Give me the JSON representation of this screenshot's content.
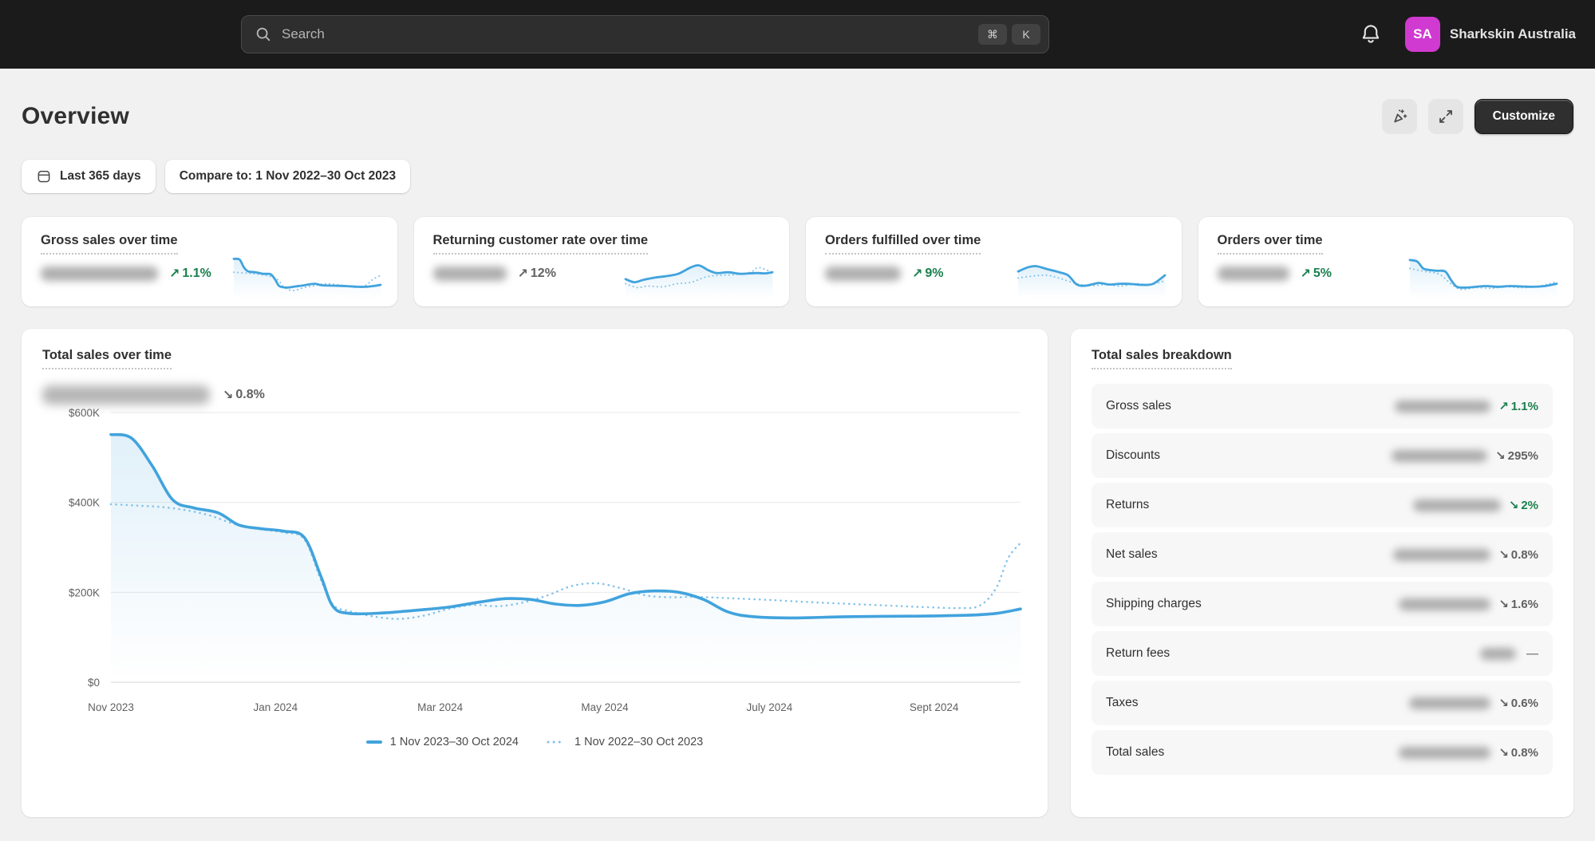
{
  "colors": {
    "accent": "#41a3dd",
    "accent_soft": "#82c2ea",
    "positive": "#19804d",
    "avatar": "#d03ad0"
  },
  "topbar": {
    "search_placeholder": "Search",
    "shortcut_keys": [
      "⌘",
      "K"
    ],
    "store_initials": "SA",
    "store_name": "Sharkskin Australia"
  },
  "header": {
    "title": "Overview",
    "customize_label": "Customize"
  },
  "filters": {
    "date_range": "Last 365 days",
    "compare": "Compare to: 1 Nov 2022–30 Oct 2023"
  },
  "metric_cards": [
    {
      "title": "Gross sales over time",
      "arrow": "↗",
      "change": "1.1%",
      "tone": "positive",
      "value_redacted": true,
      "sparkline": {
        "current": [
          [
            0,
            0.95
          ],
          [
            0.04,
            0.93
          ],
          [
            0.07,
            0.72
          ],
          [
            0.1,
            0.62
          ],
          [
            0.15,
            0.6
          ],
          [
            0.2,
            0.56
          ],
          [
            0.25,
            0.55
          ],
          [
            0.28,
            0.42
          ],
          [
            0.31,
            0.24
          ],
          [
            0.36,
            0.2
          ],
          [
            0.42,
            0.23
          ],
          [
            0.48,
            0.26
          ],
          [
            0.55,
            0.3
          ],
          [
            0.6,
            0.26
          ],
          [
            0.68,
            0.25
          ],
          [
            0.76,
            0.24
          ],
          [
            0.84,
            0.22
          ],
          [
            0.9,
            0.22
          ],
          [
            0.95,
            0.24
          ],
          [
            1,
            0.27
          ]
        ],
        "previous": [
          [
            0,
            0.6
          ],
          [
            0.08,
            0.58
          ],
          [
            0.16,
            0.55
          ],
          [
            0.24,
            0.5
          ],
          [
            0.3,
            0.4
          ],
          [
            0.34,
            0.22
          ],
          [
            0.4,
            0.12
          ],
          [
            0.48,
            0.2
          ],
          [
            0.55,
            0.25
          ],
          [
            0.62,
            0.3
          ],
          [
            0.7,
            0.28
          ],
          [
            0.78,
            0.24
          ],
          [
            0.85,
            0.22
          ],
          [
            0.9,
            0.26
          ],
          [
            0.95,
            0.42
          ],
          [
            1,
            0.52
          ]
        ]
      }
    },
    {
      "title": "Returning customer rate over time",
      "arrow": "↗",
      "change": "12%",
      "tone": "neutral",
      "value_redacted": true,
      "sparkline": {
        "current": [
          [
            0,
            0.42
          ],
          [
            0.06,
            0.34
          ],
          [
            0.12,
            0.4
          ],
          [
            0.2,
            0.46
          ],
          [
            0.28,
            0.5
          ],
          [
            0.36,
            0.56
          ],
          [
            0.44,
            0.72
          ],
          [
            0.5,
            0.78
          ],
          [
            0.56,
            0.66
          ],
          [
            0.62,
            0.58
          ],
          [
            0.7,
            0.6
          ],
          [
            0.78,
            0.56
          ],
          [
            0.84,
            0.57
          ],
          [
            0.9,
            0.58
          ],
          [
            0.95,
            0.57
          ],
          [
            1,
            0.6
          ]
        ],
        "previous": [
          [
            0,
            0.3
          ],
          [
            0.08,
            0.2
          ],
          [
            0.15,
            0.24
          ],
          [
            0.25,
            0.22
          ],
          [
            0.35,
            0.3
          ],
          [
            0.45,
            0.34
          ],
          [
            0.55,
            0.48
          ],
          [
            0.65,
            0.52
          ],
          [
            0.75,
            0.54
          ],
          [
            0.85,
            0.6
          ],
          [
            0.9,
            0.72
          ],
          [
            0.95,
            0.68
          ],
          [
            1,
            0.58
          ]
        ]
      }
    },
    {
      "title": "Orders fulfilled over time",
      "arrow": "↗",
      "change": "9%",
      "tone": "positive",
      "value_redacted": true,
      "sparkline": {
        "current": [
          [
            0,
            0.62
          ],
          [
            0.06,
            0.72
          ],
          [
            0.12,
            0.76
          ],
          [
            0.2,
            0.68
          ],
          [
            0.28,
            0.6
          ],
          [
            0.34,
            0.52
          ],
          [
            0.4,
            0.28
          ],
          [
            0.46,
            0.25
          ],
          [
            0.55,
            0.32
          ],
          [
            0.62,
            0.28
          ],
          [
            0.7,
            0.3
          ],
          [
            0.78,
            0.29
          ],
          [
            0.85,
            0.27
          ],
          [
            0.92,
            0.3
          ],
          [
            1,
            0.52
          ]
        ],
        "previous": [
          [
            0,
            0.45
          ],
          [
            0.1,
            0.5
          ],
          [
            0.2,
            0.52
          ],
          [
            0.3,
            0.42
          ],
          [
            0.4,
            0.3
          ],
          [
            0.5,
            0.25
          ],
          [
            0.6,
            0.28
          ],
          [
            0.7,
            0.24
          ],
          [
            0.8,
            0.3
          ],
          [
            0.9,
            0.28
          ],
          [
            1,
            0.38
          ]
        ]
      }
    },
    {
      "title": "Orders over time",
      "arrow": "↗",
      "change": "5%",
      "tone": "positive",
      "value_redacted": true,
      "sparkline": {
        "current": [
          [
            0,
            0.92
          ],
          [
            0.05,
            0.88
          ],
          [
            0.09,
            0.7
          ],
          [
            0.13,
            0.66
          ],
          [
            0.18,
            0.64
          ],
          [
            0.24,
            0.62
          ],
          [
            0.28,
            0.4
          ],
          [
            0.32,
            0.22
          ],
          [
            0.38,
            0.2
          ],
          [
            0.45,
            0.22
          ],
          [
            0.52,
            0.24
          ],
          [
            0.6,
            0.22
          ],
          [
            0.68,
            0.24
          ],
          [
            0.76,
            0.23
          ],
          [
            0.84,
            0.22
          ],
          [
            0.92,
            0.24
          ],
          [
            1,
            0.3
          ]
        ],
        "previous": [
          [
            0,
            0.7
          ],
          [
            0.1,
            0.62
          ],
          [
            0.2,
            0.55
          ],
          [
            0.28,
            0.3
          ],
          [
            0.35,
            0.15
          ],
          [
            0.45,
            0.2
          ],
          [
            0.55,
            0.18
          ],
          [
            0.65,
            0.22
          ],
          [
            0.75,
            0.2
          ],
          [
            0.85,
            0.22
          ],
          [
            0.93,
            0.28
          ],
          [
            1,
            0.35
          ]
        ]
      }
    }
  ],
  "main_chart": {
    "title": "Total sales over time",
    "arrow": "↘",
    "change": "0.8%",
    "tone": "neutral",
    "value_redacted": true
  },
  "chart_data": {
    "type": "line",
    "title": "Total sales over time",
    "y_unit": "USD thousands",
    "x_domain": [
      0,
      11.05
    ],
    "y_domain": [
      0,
      620
    ],
    "grid": true,
    "legend_position": "bottom",
    "y_ticks": [
      {
        "v": 0,
        "label": "$0"
      },
      {
        "v": 200,
        "label": "$200K"
      },
      {
        "v": 400,
        "label": "$400K"
      },
      {
        "v": 600,
        "label": "$600K"
      }
    ],
    "x_ticks": [
      {
        "m": 0,
        "label": "Nov 2023"
      },
      {
        "m": 2,
        "label": "Jan 2024"
      },
      {
        "m": 4,
        "label": "Mar 2024"
      },
      {
        "m": 6,
        "label": "May 2024"
      },
      {
        "m": 8,
        "label": "July 2024"
      },
      {
        "m": 10,
        "label": "Sept 2024"
      }
    ],
    "series": [
      {
        "name": "1 Nov 2023–30 Oct 2024",
        "style": "solid",
        "points": [
          [
            0,
            551
          ],
          [
            0.25,
            543
          ],
          [
            0.5,
            482
          ],
          [
            0.75,
            406
          ],
          [
            1.0,
            388
          ],
          [
            1.3,
            377
          ],
          [
            1.55,
            350
          ],
          [
            1.8,
            342
          ],
          [
            2.1,
            336
          ],
          [
            2.35,
            322
          ],
          [
            2.55,
            236
          ],
          [
            2.7,
            168
          ],
          [
            2.9,
            153
          ],
          [
            3.3,
            154
          ],
          [
            3.7,
            160
          ],
          [
            4.1,
            167
          ],
          [
            4.5,
            179
          ],
          [
            4.8,
            186
          ],
          [
            5.1,
            184
          ],
          [
            5.4,
            174
          ],
          [
            5.7,
            171
          ],
          [
            6.0,
            179
          ],
          [
            6.3,
            197
          ],
          [
            6.6,
            203
          ],
          [
            6.9,
            200
          ],
          [
            7.2,
            184
          ],
          [
            7.5,
            156
          ],
          [
            7.8,
            146
          ],
          [
            8.3,
            143
          ],
          [
            9.0,
            146
          ],
          [
            9.8,
            147
          ],
          [
            10.4,
            149
          ],
          [
            10.75,
            153
          ],
          [
            11.05,
            163
          ]
        ]
      },
      {
        "name": "1 Nov 2022–30 Oct 2023",
        "style": "dotted",
        "points": [
          [
            0,
            396
          ],
          [
            0.3,
            393
          ],
          [
            0.6,
            390
          ],
          [
            0.9,
            383
          ],
          [
            1.2,
            371
          ],
          [
            1.5,
            352
          ],
          [
            1.8,
            341
          ],
          [
            2.1,
            333
          ],
          [
            2.35,
            318
          ],
          [
            2.55,
            228
          ],
          [
            2.7,
            172
          ],
          [
            2.9,
            158
          ],
          [
            3.2,
            146
          ],
          [
            3.5,
            141
          ],
          [
            3.8,
            148
          ],
          [
            4.1,
            163
          ],
          [
            4.4,
            172
          ],
          [
            4.7,
            169
          ],
          [
            5.0,
            177
          ],
          [
            5.3,
            193
          ],
          [
            5.6,
            214
          ],
          [
            5.9,
            220
          ],
          [
            6.2,
            209
          ],
          [
            6.5,
            193
          ],
          [
            6.8,
            189
          ],
          [
            7.1,
            190
          ],
          [
            7.5,
            187
          ],
          [
            8.0,
            183
          ],
          [
            8.5,
            178
          ],
          [
            9.0,
            174
          ],
          [
            9.5,
            170
          ],
          [
            9.9,
            167
          ],
          [
            10.3,
            165
          ],
          [
            10.55,
            170
          ],
          [
            10.75,
            208
          ],
          [
            10.9,
            276
          ],
          [
            11.05,
            310
          ]
        ]
      }
    ]
  },
  "breakdown": {
    "title": "Total sales breakdown",
    "rows": [
      {
        "label": "Gross sales",
        "arrow": "↗",
        "change": "1.1%",
        "tone": "positive",
        "value_redacted": true
      },
      {
        "label": "Discounts",
        "arrow": "↘",
        "change": "295%",
        "tone": "neutral",
        "value_redacted": true
      },
      {
        "label": "Returns",
        "arrow": "↘",
        "change": "2%",
        "tone": "positive",
        "value_redacted": true
      },
      {
        "label": "Net sales",
        "arrow": "↘",
        "change": "0.8%",
        "tone": "neutral",
        "value_redacted": true
      },
      {
        "label": "Shipping charges",
        "arrow": "↘",
        "change": "1.6%",
        "tone": "neutral",
        "value_redacted": true
      },
      {
        "label": "Return fees",
        "arrow": "",
        "change": "—",
        "tone": "none",
        "value_redacted": true
      },
      {
        "label": "Taxes",
        "arrow": "↘",
        "change": "0.6%",
        "tone": "neutral",
        "value_redacted": true
      },
      {
        "label": "Total sales",
        "arrow": "↘",
        "change": "0.8%",
        "tone": "neutral",
        "value_redacted": true
      }
    ]
  }
}
